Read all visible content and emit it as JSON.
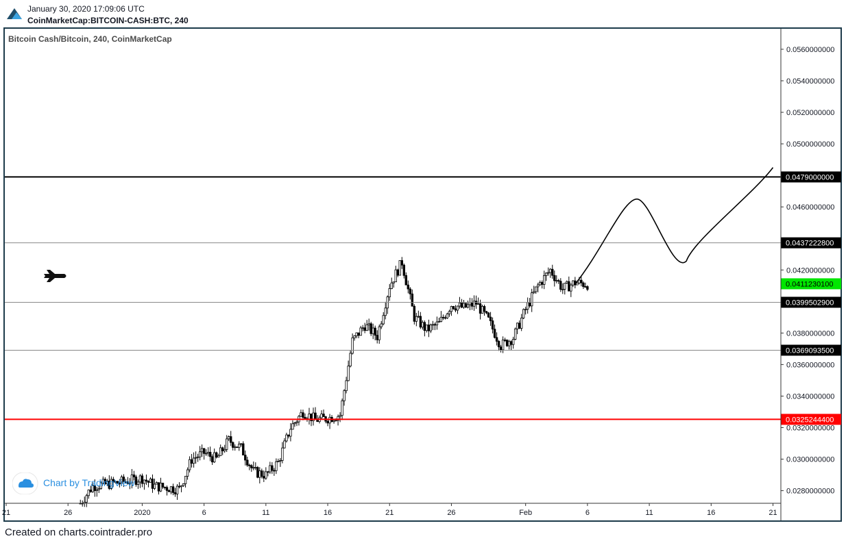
{
  "header": {
    "date": "January 30, 2020 17:09:06 UTC",
    "symbol": "CoinMarketCap:BITCOIN-CASH:BTC, 240"
  },
  "pane_title": "Bitcoin Cash/Bitcoin, 240, CoinMarketCap",
  "watermark": "Chart by TradingView",
  "footer": "Created on charts.cointrader.pro",
  "chart_data": {
    "type": "candlestick",
    "x_tick_labels": [
      "21",
      "26",
      "2020",
      "6",
      "11",
      "16",
      "21",
      "26",
      "Feb",
      "6",
      "11",
      "16",
      "21"
    ],
    "y_tick_labels": [
      "0.0560000000",
      "0.0540000000",
      "0.0520000000",
      "0.0500000000",
      "0.0460000000",
      "0.0420000000",
      "0.0380000000",
      "0.0360000000",
      "0.0340000000",
      "0.0320000000",
      "0.0300000000",
      "0.0280000000"
    ],
    "y_tick_values": [
      0.056,
      0.054,
      0.052,
      0.05,
      0.046,
      0.042,
      0.038,
      0.036,
      0.034,
      0.032,
      0.03,
      0.028
    ],
    "ylim": [
      0.0272,
      0.0573
    ],
    "horizontal_levels": [
      {
        "value": 0.0479,
        "label": "0.0479000000",
        "color": "#000000",
        "emphasis": "thick"
      },
      {
        "value": 0.04372228,
        "label": "0.0437222800",
        "color": "#000000",
        "emphasis": "thin"
      },
      {
        "value": 0.03995029,
        "label": "0.0399502900",
        "color": "#000000",
        "emphasis": "thin"
      },
      {
        "value": 0.03690935,
        "label": "0.0369093500",
        "color": "#000000",
        "emphasis": "thin"
      },
      {
        "value": 0.03252444,
        "label": "0.0325244400",
        "color": "#ff0000",
        "emphasis": "thick"
      }
    ],
    "last_price": {
      "value": 0.04112301,
      "label": "0.0411230100",
      "color": "#00e600"
    },
    "close_path": [
      [
        "Dec 27",
        0.0272
      ],
      [
        "Dec 28",
        0.0283
      ],
      [
        "Dec 30",
        0.0285
      ],
      [
        "Jan 1",
        0.0288
      ],
      [
        "Jan 2",
        0.0283
      ],
      [
        "Jan 3",
        0.0282
      ],
      [
        "Jan 4",
        0.0281
      ],
      [
        "Jan 5",
        0.03
      ],
      [
        "Jan 6",
        0.0304
      ],
      [
        "Jan 7",
        0.03
      ],
      [
        "Jan 8",
        0.0312
      ],
      [
        "Jan 9",
        0.0307
      ],
      [
        "Jan 10",
        0.0292
      ],
      [
        "Jan 11",
        0.029
      ],
      [
        "Jan 12",
        0.0298
      ],
      [
        "Jan 13",
        0.032
      ],
      [
        "Jan 14",
        0.033
      ],
      [
        "Jan 15",
        0.0325
      ],
      [
        "Jan 16",
        0.0326
      ],
      [
        "Jan 17",
        0.0328
      ],
      [
        "Jan 18",
        0.0375
      ],
      [
        "Jan 19",
        0.0385
      ],
      [
        "Jan 20",
        0.0378
      ],
      [
        "Jan 21",
        0.041
      ],
      [
        "Jan 22",
        0.0425
      ],
      [
        "Jan 23",
        0.039
      ],
      [
        "Jan 24",
        0.0382
      ],
      [
        "Jan 25",
        0.0386
      ],
      [
        "Jan 26",
        0.0398
      ],
      [
        "Jan 27",
        0.0396
      ],
      [
        "Jan 28",
        0.0399
      ],
      [
        "Jan 29",
        0.0388
      ],
      [
        "Jan 30",
        0.0372
      ],
      [
        "Jan 31",
        0.0377
      ],
      [
        "Feb 1",
        0.0395
      ],
      [
        "Feb 2",
        0.041
      ],
      [
        "Feb 3",
        0.042
      ],
      [
        "Feb 4",
        0.0408
      ],
      [
        "Feb 5",
        0.0412
      ],
      [
        "Feb 6",
        0.0411
      ]
    ],
    "annotations": [
      {
        "type": "projection-curve",
        "points": [
          [
            "Feb 5",
            0.0411
          ],
          [
            "Feb 10",
            0.0465
          ],
          [
            "Feb 14",
            0.043
          ],
          [
            "Feb 21",
            0.0485
          ]
        ]
      },
      {
        "type": "icon",
        "name": "jet-icon"
      }
    ],
    "colors": {
      "candles": "#000000",
      "grid": "#000000",
      "red_level": "#ff0000",
      "last_price": "#00e600"
    }
  }
}
